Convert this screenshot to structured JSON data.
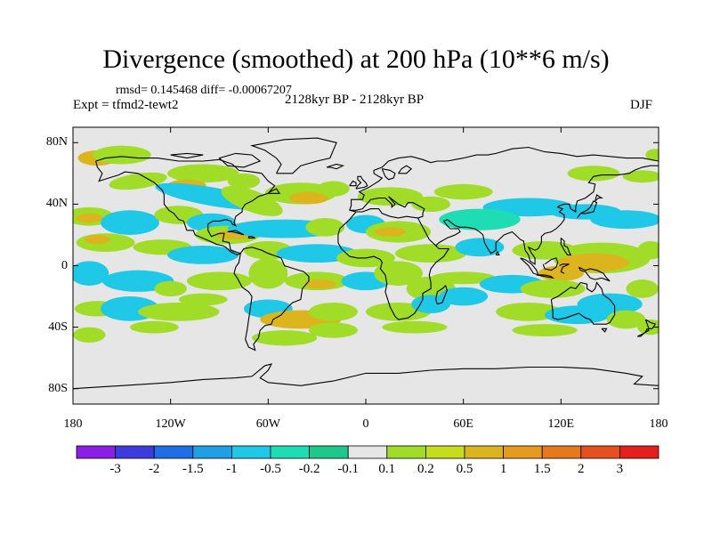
{
  "title": "Divergence (smoothed) at 200 hPa (10**6 m/s)",
  "stats": "rmsd= 0.145468 diff= -0.00067207",
  "experiment": "Expt = tfmd2-tewt2",
  "period": "2128kyr BP - 2128kyr BP",
  "season": "DJF",
  "map": {
    "projection": "cylindrical equidistant",
    "lon_range": [
      -180,
      180
    ],
    "lat_range": [
      -90,
      90
    ],
    "lat_ticks": [
      "80N",
      "40N",
      "0",
      "40S",
      "80S"
    ],
    "lon_ticks": [
      "180",
      "120W",
      "60W",
      "0",
      "60E",
      "120E",
      "180"
    ]
  },
  "colorbar": {
    "colors": [
      "#8c1ee6",
      "#3c3cdc",
      "#1e6ee6",
      "#1e9fe6",
      "#1ec8e6",
      "#1edcb4",
      "#1ec88c",
      "#e6e6e6",
      "#a0dc28",
      "#c8dc1e",
      "#dcb41e",
      "#e69b1e",
      "#e6781e",
      "#e6501e",
      "#e61e1e"
    ],
    "labels": [
      "-3",
      "-2",
      "-1.5",
      "-1",
      "-0.5",
      "-0.2",
      "-0.1",
      "0.1",
      "0.2",
      "0.5",
      "1",
      "1.5",
      "2",
      "3"
    ]
  },
  "colors": {
    "background": "#e6e6e6",
    "coast": "#000000",
    "light_green": "#a0dc28",
    "yellow_green": "#c8dc1e",
    "orange": "#dcb41e",
    "cyan": "#1ec8e6",
    "teal": "#1edcb4",
    "green": "#1ec88c",
    "light_blue": "#1e9fe6"
  }
}
